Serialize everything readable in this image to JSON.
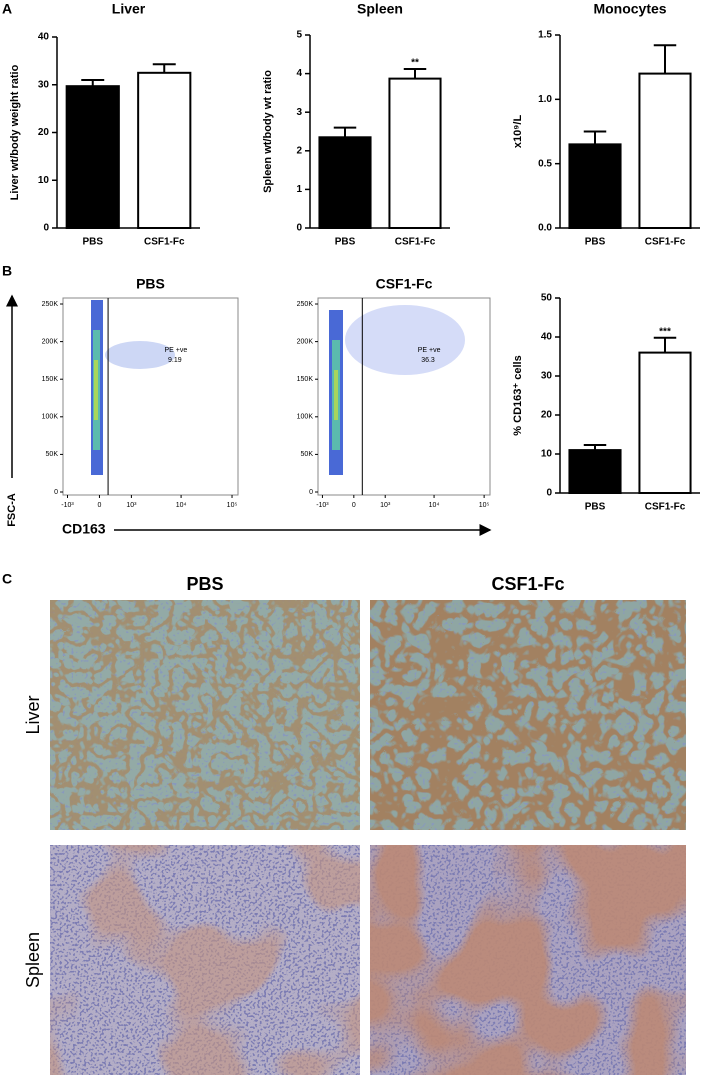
{
  "panel_labels": [
    "A",
    "B",
    "C"
  ],
  "chart_data": [
    {
      "type": "bar",
      "title": "Liver",
      "ylabel": "Liver wt/body weight ratio",
      "categories": [
        "PBS",
        "CSF1-Fc"
      ],
      "values": [
        29.7,
        32.5
      ],
      "errors": [
        1.3,
        1.8
      ],
      "colors": [
        "#000000",
        "#ffffff"
      ],
      "significance": [
        null,
        null
      ],
      "ylim": [
        0,
        40
      ],
      "yticks": [
        0,
        10,
        20,
        30,
        40
      ]
    },
    {
      "type": "bar",
      "title": "Spleen",
      "ylabel": "Spleen wt/body wt ratio",
      "categories": [
        "PBS",
        "CSF1-Fc"
      ],
      "values": [
        2.35,
        3.87
      ],
      "errors": [
        0.25,
        0.25
      ],
      "colors": [
        "#000000",
        "#ffffff"
      ],
      "significance": [
        null,
        "**"
      ],
      "ylim": [
        0,
        5
      ],
      "yticks": [
        0,
        1,
        2,
        3,
        4,
        5
      ]
    },
    {
      "type": "bar",
      "title": "Monocytes",
      "ylabel": "x10⁹/L",
      "categories": [
        "PBS",
        "CSF1-Fc"
      ],
      "values": [
        0.65,
        1.2
      ],
      "errors": [
        0.1,
        0.22
      ],
      "colors": [
        "#000000",
        "#ffffff"
      ],
      "significance": [
        null,
        null
      ],
      "ylim": [
        0,
        1.5
      ],
      "yticks": [
        {
          "value": 0,
          "label": "0.0"
        },
        0.5,
        {
          "value": 1,
          "label": "1.0"
        },
        1.5
      ]
    },
    {
      "type": "scatter",
      "title": "PBS",
      "xlabel": "CD163",
      "ylabel": "FSC-A",
      "xscale": "asinh",
      "xlim": [
        -1250,
        131000
      ],
      "ylim": [
        -4000,
        258000
      ],
      "xticks": [
        {
          "value": -1000,
          "label": "-10³"
        },
        0,
        {
          "value": 1000,
          "label": "10³"
        },
        {
          "value": 10000,
          "label": "10⁴"
        },
        {
          "value": 100000,
          "label": "10⁵"
        }
      ],
      "yticks": [
        0,
        {
          "value": 50000,
          "label": "50K"
        },
        {
          "value": 100000,
          "label": "100K"
        },
        {
          "value": 150000,
          "label": "150K"
        },
        {
          "value": 200000,
          "label": "200K"
        },
        {
          "value": 250000,
          "label": "250K"
        }
      ],
      "gate_x": 200,
      "gate_label": "PE +ve",
      "gate_value": 9.19
    },
    {
      "type": "scatter",
      "title": "CSF1-Fc",
      "xscale": "asinh",
      "xlim": [
        -1250,
        131000
      ],
      "ylim": [
        -4000,
        258000
      ],
      "xticks": [
        {
          "value": -1000,
          "label": "-10³"
        },
        0,
        {
          "value": 1000,
          "label": "10³"
        },
        {
          "value": 10000,
          "label": "10⁴"
        },
        {
          "value": 100000,
          "label": "10⁵"
        }
      ],
      "yticks": [
        0,
        {
          "value": 50000,
          "label": "50K"
        },
        {
          "value": 100000,
          "label": "100K"
        },
        {
          "value": 150000,
          "label": "150K"
        },
        {
          "value": 200000,
          "label": "200K"
        },
        {
          "value": 250000,
          "label": "250K"
        }
      ],
      "gate_x": 200,
      "gate_label": "PE +ve",
      "gate_value": 36.3
    },
    {
      "type": "bar",
      "ylabel": "% CD163⁺ cells",
      "categories": [
        "PBS",
        "CSF1-Fc"
      ],
      "values": [
        11,
        36
      ],
      "errors": [
        1.3,
        3.8
      ],
      "colors": [
        "#000000",
        "#ffffff"
      ],
      "significance": [
        null,
        "***"
      ],
      "ylim": [
        0,
        50
      ],
      "yticks": [
        0,
        10,
        20,
        30,
        40,
        50
      ]
    }
  ],
  "histology": {
    "columns": [
      "PBS",
      "CSF1-Fc"
    ],
    "rows": [
      "Liver",
      "Spleen"
    ]
  }
}
